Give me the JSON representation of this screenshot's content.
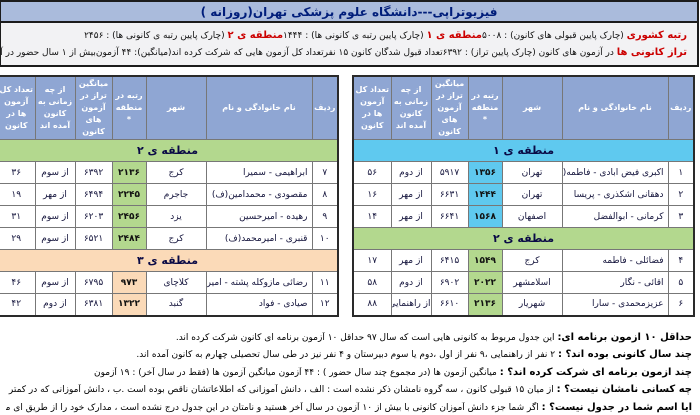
{
  "title": "فیزیوتراپی---دانشگاه علوم پزشکی تهران(روزانه )",
  "stats": {
    "r1": [
      {
        "label": "رتبه کشوری",
        "text": "(چارک پایین قبولی های کانون) : ۵۰۰۸"
      },
      {
        "label": "منطقه ی ۱",
        "text": "(چارک پایین رتبه ی کانونی ها) : ۱۴۴۴"
      },
      {
        "label": "منطقه ی ۲",
        "text": "(چارک پایین رتبه ی کانونی ها) : ۲۴۵۶"
      }
    ],
    "r2": [
      {
        "label": "تراز کانونی ها",
        "text": "در آزمون های کانون (چارک پایین تراز) : ۶۳۹۲"
      },
      {
        "label": "",
        "text": "تعداد قبول شدگان کانون ۱۵ نفر"
      },
      {
        "label": "",
        "text": "تعداد کل آزمون هایی که شرکت کرده اند(میانگین): ۴۴ آزمون"
      },
      {
        "label": "",
        "text": "بیش از ۱ سال حضور در آزمون های کانون: ۱۱ نفر"
      }
    ]
  },
  "table_headers": [
    "ردیف",
    "نام خانوادگی و نام",
    "شهر",
    "رتبه در منطقه *",
    "میانگین تراز در آزمون های کانون",
    "از چه زمانی به کانون آمده اند",
    "تعداد کل آزمون ها در کانون"
  ],
  "tables": [
    {
      "side": "right",
      "sections": [
        {
          "title": "منطقه ی ۱",
          "color": "#5fc9ef",
          "rows": [
            {
              "num": "۱",
              "name": "اکبری فیض ابادی - فاطمه(ف)",
              "city": "تهران",
              "rank": "۱۳۵۶",
              "avg": "۵۹۱۷",
              "since": "از دوم",
              "total": "۵۶"
            },
            {
              "num": "۲",
              "name": "دهقانی اشکذری - پریسا",
              "city": "تهران",
              "rank": "۱۴۴۴",
              "avg": "۶۶۳۱",
              "since": "از مهر",
              "total": "۱۶"
            },
            {
              "num": "۳",
              "name": "کرمانی - ابوالفضل",
              "city": "اصفهان",
              "rank": "۱۵۶۸",
              "avg": "۶۶۴۱",
              "since": "از مهر",
              "total": "۱۴"
            }
          ]
        },
        {
          "title": "منطقه ی ۲",
          "color": "#b3d88e",
          "rows": [
            {
              "num": "۴",
              "name": "فضائلی - فاطمه",
              "city": "کرج",
              "rank": "۱۵۴۹",
              "avg": "۶۴۱۵",
              "since": "از مهر",
              "total": "۱۷"
            },
            {
              "num": "۵",
              "name": "اقائی - نگار",
              "city": "اسلامشهر",
              "rank": "۲۰۲۲",
              "avg": "۶۹۰۲",
              "since": "از دوم",
              "total": "۵۸"
            },
            {
              "num": "۶",
              "name": "عزیزمحمدی - سارا",
              "city": "شهریار",
              "rank": "۲۱۳۶",
              "avg": "۶۶۱۰",
              "since": "از راهنمایی",
              "total": "۸۸"
            }
          ]
        }
      ]
    },
    {
      "side": "left",
      "sections": [
        {
          "title": "منطقه ی ۲",
          "color": "#b3d88e",
          "rows": [
            {
              "num": "۷",
              "name": "ابراهیمی - سمیرا",
              "city": "کرج",
              "rank": "۲۱۳۶",
              "avg": "۶۳۹۲",
              "since": "از سوم",
              "total": "۳۶"
            },
            {
              "num": "۸",
              "name": "مقصودی - محمدامین(ف)",
              "city": "جاجرم",
              "rank": "۲۲۴۵",
              "avg": "۶۴۹۴",
              "since": "از مهر",
              "total": "۱۹"
            },
            {
              "num": "۹",
              "name": "رهیده - امیرحسین",
              "city": "یزد",
              "rank": "۲۴۵۶",
              "avg": "۶۲۰۳",
              "since": "از سوم",
              "total": "۳۱"
            },
            {
              "num": "۱۰",
              "name": "قنبری - امیرمحمد(ف)",
              "city": "کرج",
              "rank": "۲۴۸۴",
              "avg": "۶۵۲۱",
              "since": "از سوم",
              "total": "۲۹"
            }
          ]
        },
        {
          "title": "منطقه ی ۳",
          "color": "#fbdab8",
          "rows": [
            {
              "num": "۱۱",
              "name": "رضائی مازوکله پشته - امیرحسین",
              "city": "کلاچای",
              "rank": "۹۷۳",
              "avg": "۶۷۹۵",
              "since": "از سوم",
              "total": "۴۶"
            },
            {
              "num": "۱۲",
              "name": "صیادی - فواد",
              "city": "گنبد",
              "rank": "۱۳۲۲",
              "avg": "۶۳۸۱",
              "since": "از دوم",
              "total": "۴۲"
            }
          ]
        }
      ]
    }
  ],
  "notes": [
    {
      "label": "حداقل ۱۰ آزمون برنامه ای:",
      "text": "این جدول مربوط به کانونی هایی است که سال ۹۷ حداقل ۱۰ آزمون برنامه ای کانون شرکت کرده اند."
    },
    {
      "label": "چند سال کانونی بوده اند؟ :",
      "text": "۲ نفر از راهنمایی ،۹ نفر از اول ،دوم یا سوم دبیرستان و ۴ نفر نیز در طی سال تحصیلی چهارم به کانون آمده اند."
    },
    {
      "label": "چند آزمون برنامه ای شرکت کرده اند؟ :",
      "text": "میانگین آزمون ها (در مجموع چند سال حضور ) : ۴۴ آزمون      میانگین آزمون ها (فقط در سال آخر) : ۱۹ آزمون"
    },
    {
      "label": "چه کسانی نامشان نیست؟ :",
      "text": "از میان ۱۵ قبولی کانون ، سه گروه نامشان ذکر نشده است : الف ، دانش آموزانی که اطلاعاتشان ناقص بوده است .ب ، دانش آموزانی که در کمتر از ۱۰ آزمون برنامه ای"
    },
    {
      "label": "آیا اسم شما در جدول نیست؟ :",
      "text": "اگر شما جزء دانش آموزان کانونی با بیش از ۱۰ آزمون در سال آخر هستید و نامتان در این جدول درج نشده است ، مدارک خود را از طریق ای میل به نشانی"
    }
  ],
  "colors": {
    "accent_red": "#cc0000",
    "title_bar_blue": "#aabbdc",
    "table_header_blue": "#8fa6d3",
    "region1_cyan": "#5fc9ef",
    "region2_green": "#b3d88e",
    "region3_peach": "#fbdab8"
  }
}
